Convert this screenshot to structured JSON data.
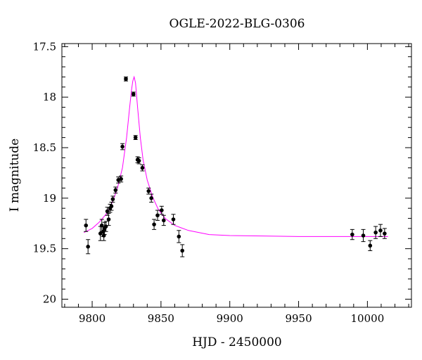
{
  "chart_data": {
    "type": "scatter",
    "title": "OGLE-2022-BLG-0306",
    "xlabel": "HJD - 2450000",
    "ylabel": "I magnitude",
    "xlim": [
      9778,
      10032
    ],
    "ylim": [
      20.08,
      17.47
    ],
    "y_inverted": true,
    "grid": false,
    "x_ticks": [
      9800,
      9850,
      9900,
      9950,
      10000
    ],
    "y_ticks": [
      17.5,
      18,
      18.5,
      19,
      19.5,
      20
    ],
    "x_tick_labels": [
      "9800",
      "9850",
      "9900",
      "9950",
      "10000"
    ],
    "y_tick_labels": [
      "17.5",
      "18",
      "18.5",
      "19",
      "19.5",
      "20"
    ],
    "colors": {
      "points": "#000000",
      "model": "#ff00ff"
    },
    "series": [
      {
        "type": "scatter",
        "x": [
          9795.5,
          9797.0,
          9806.0,
          9807.0,
          9808.0,
          9808.5,
          9809.0,
          9810.0,
          9811.0,
          9812.0,
          9813.0,
          9814.0,
          9815.0,
          9817.0,
          9819.0,
          9821.0,
          9822.0,
          9824.5,
          9830.0,
          9831.5,
          9833.0,
          9834.0,
          9836.5,
          9841.0,
          9843.0,
          9845.0,
          9847.5,
          9850.5,
          9852.0,
          9859.0,
          9863.0,
          9865.5,
          9989.0,
          9997.0,
          10002.0,
          10006.0,
          10009.5,
          10012.5
        ],
        "y": [
          19.27,
          19.48,
          19.35,
          19.27,
          19.33,
          19.37,
          19.3,
          19.28,
          19.13,
          19.21,
          19.1,
          19.08,
          19.01,
          18.92,
          18.82,
          18.81,
          18.49,
          17.82,
          17.97,
          18.4,
          18.62,
          18.63,
          18.7,
          18.93,
          19.0,
          19.26,
          19.17,
          19.12,
          19.22,
          19.21,
          19.38,
          19.52,
          19.36,
          19.37,
          19.47,
          19.34,
          19.32,
          19.35
        ],
        "yerr": [
          0.06,
          0.07,
          0.07,
          0.06,
          0.05,
          0.05,
          0.06,
          0.05,
          0.04,
          0.06,
          0.04,
          0.04,
          0.03,
          0.03,
          0.03,
          0.03,
          0.03,
          0.02,
          0.02,
          0.02,
          0.03,
          0.03,
          0.03,
          0.03,
          0.04,
          0.05,
          0.05,
          0.04,
          0.05,
          0.05,
          0.06,
          0.06,
          0.05,
          0.06,
          0.05,
          0.06,
          0.06,
          0.05
        ]
      },
      {
        "type": "line",
        "x": [
          9794,
          9800,
          9805,
          9810,
          9814,
          9818,
          9822,
          9825,
          9827,
          9828.5,
          9829.5,
          9830.5,
          9831.5,
          9833,
          9835,
          9837,
          9840,
          9844,
          9848,
          9853,
          9860,
          9870,
          9885,
          9900,
          9950,
          10000,
          10015
        ],
        "y": [
          19.34,
          19.3,
          19.24,
          19.16,
          19.06,
          18.92,
          18.7,
          18.4,
          18.13,
          17.94,
          17.84,
          17.8,
          17.86,
          18.1,
          18.4,
          18.62,
          18.82,
          18.99,
          19.11,
          19.2,
          19.27,
          19.32,
          19.36,
          19.37,
          19.38,
          19.38,
          19.38
        ]
      }
    ]
  }
}
